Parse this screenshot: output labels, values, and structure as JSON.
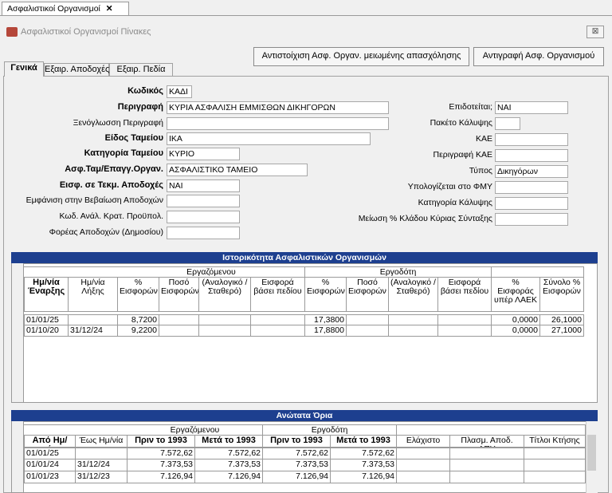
{
  "tab": "Ασφαλιστικοί Οργανισμοί",
  "window_title": "Ασφαλιστικοί Οργανισμοί Πίνακες",
  "buttons": [
    "Αντιστοίχιση Ασφ. Οργαν. μειωμένης απασχόλησης",
    "Αντιγραφή Ασφ. Οργανισμού"
  ],
  "tabs": [
    "Γενικά",
    "Εξαιρ. Αποδοχές",
    "Εξαιρ. Πεδία"
  ],
  "form_left": [
    {
      "label": "Κωδικός",
      "value": "ΚΑΔΙ",
      "bold": true
    },
    {
      "label": "Περιγραφή",
      "value": "ΚΥΡΙΑ ΑΣΦΑΛΙΣΗ ΕΜΜΙΣΘΩΝ ΔΙΚΗΓΟΡΩΝ",
      "bold": true
    },
    {
      "label": "Ξενόγλωσση Περιγραφή"
    },
    {
      "label": "Είδος Ταμείου",
      "value": "ΙΚΑ",
      "bold": true
    },
    {
      "label": "Κατηγορία Ταμείου",
      "value": "ΚΥΡΙΟ",
      "bold": true
    },
    {
      "label": "Ασφ.Ταμ/Επαγγ.Οργαν.",
      "value": "ΑΣΦΑΛΙΣΤΙΚΟ ΤΑΜΕΙΟ",
      "bold": true
    },
    {
      "label": "Εισφ. σε Τεκμ. Αποδοχές",
      "value": "ΝΑΙ",
      "bold": true
    },
    {
      "label": "Εμφάνιση στην Βεβαίωση Αποδοχών"
    },
    {
      "label": "Κωδ. Ανάλ. Κρατ. Προϋπολ."
    },
    {
      "label": "Φορέας Αποδοχών (Δημοσίου)"
    }
  ],
  "form_right": [
    {
      "label": "Επιδοτείται;",
      "value": "ΝΑΙ"
    },
    {
      "label": "Πακέτο Κάλυψης"
    },
    {
      "label": "ΚΑΕ"
    },
    {
      "label": "Περιγραφή ΚΑΕ"
    },
    {
      "label": "Τύπος",
      "value": "Δικηγόρων"
    },
    {
      "label": "Υπολογίζεται στο ΦΜΥ"
    },
    {
      "label": "Κατηγορία Κάλυψης"
    },
    {
      "label": "Μείωση % Κλάδου Κύριας Σύνταξης"
    }
  ],
  "history_table": {
    "title": "Ιστορικότητα Ασφαλιστικών Οργανισμών",
    "groups": [
      "Εργαζόμενου",
      "Εργοδότη"
    ],
    "columns": [
      {
        "text": "Ημ/νία Έναρξης",
        "bold": true
      },
      {
        "text": "Ημ/νία Λήξης"
      },
      {
        "text": "% Εισφορών"
      },
      {
        "text": "Ποσό Εισφορών"
      },
      {
        "text": "(Αναλογικό / Σταθερό)"
      },
      {
        "text": "Εισφορά βάσει πεδίου"
      },
      {
        "text": "% Εισφορών"
      },
      {
        "text": "Ποσό Εισφορών"
      },
      {
        "text": "(Αναλογικό / Σταθερό)"
      },
      {
        "text": "Εισφορά βάσει πεδίου"
      },
      {
        "text": "% Εισφοράς υπέρ ΛΑΕΚ"
      },
      {
        "text": "Σύνολο % Εισφορών"
      }
    ],
    "rows": [
      [
        "01/01/25",
        null,
        "8,7200",
        null,
        null,
        null,
        "17,3800",
        null,
        null,
        null,
        "0,0000",
        "26,1000"
      ],
      [
        "01/10/20",
        "31/12/24",
        "9,2200",
        null,
        null,
        null,
        "17,8800",
        null,
        null,
        null,
        "0,0000",
        "27,1000"
      ]
    ]
  },
  "limits_table": {
    "title": "Ανώτατα Όρια",
    "groups": [
      "Εργαζόμενου",
      "Εργοδότη"
    ],
    "columns": [
      {
        "text": "Από Ημ/νία",
        "bold": true
      },
      {
        "text": "Έως Ημ/νία"
      },
      {
        "text": "Πριν το 1993",
        "bold": true
      },
      {
        "text": "Μετά το 1993",
        "bold": true
      },
      {
        "text": "Πριν το 1993",
        "bold": true
      },
      {
        "text": "Μετά το 1993",
        "bold": true
      },
      {
        "text": "Ελάχιστο"
      },
      {
        "text": "Πλασμ. Αποδ. ΔΠΥ"
      },
      {
        "text": "Τίτλοι Κτήσης"
      }
    ],
    "rows": [
      [
        "01/01/25",
        null,
        "7.572,62",
        "7.572,62",
        "7.572,62",
        "7.572,62",
        null,
        null,
        null
      ],
      [
        "01/01/24",
        "31/12/24",
        "7.373,53",
        "7.373,53",
        "7.373,53",
        "7.373,53",
        null,
        null,
        null
      ],
      [
        "01/01/23",
        "31/12/23",
        "7.126,94",
        "7.126,94",
        "7.126,94",
        "7.126,94",
        null,
        null,
        null
      ]
    ]
  }
}
